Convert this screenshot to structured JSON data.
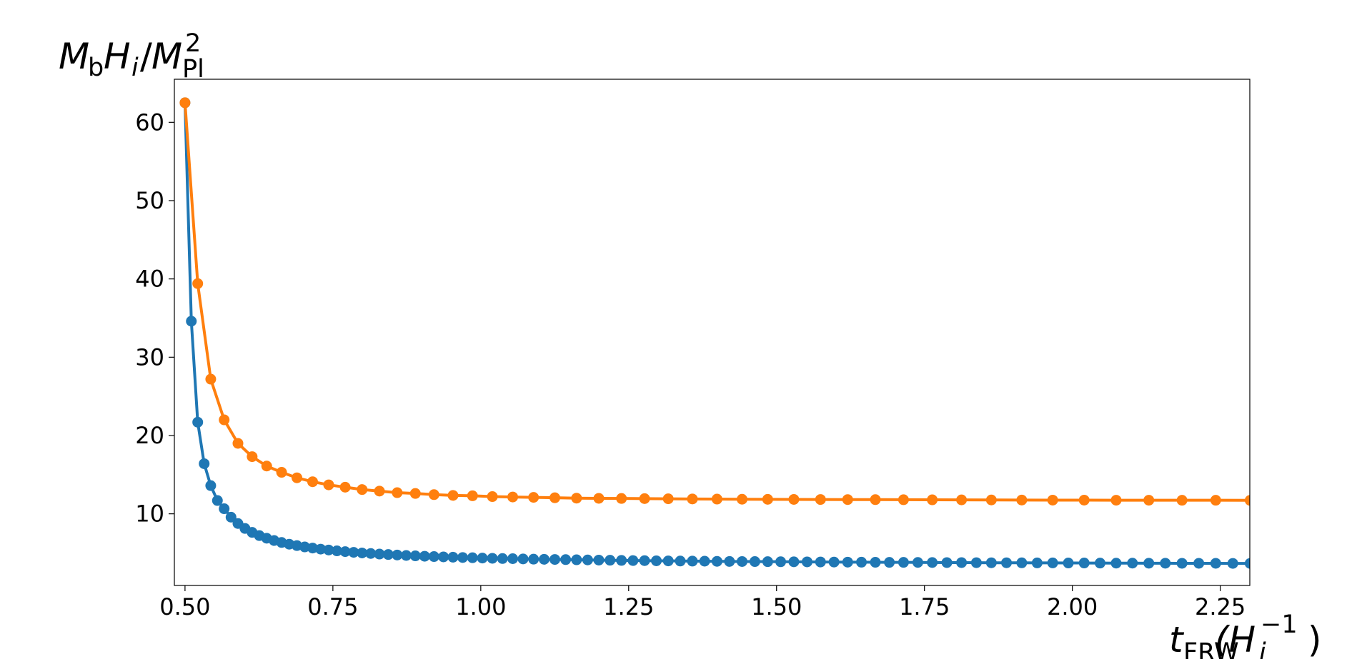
{
  "chart_data": {
    "type": "line",
    "ylabel": [
      "M",
      "b",
      "H",
      "i",
      "/",
      "M",
      "Pl",
      "2"
    ],
    "xlabel": [
      "t",
      "FRW",
      "(H",
      "i",
      "−1",
      ")"
    ],
    "xlim": [
      0.482,
      2.3
    ],
    "ylim": [
      0.85,
      65.5
    ],
    "xticks": [
      {
        "value": 0.5,
        "label": "0.50"
      },
      {
        "value": 0.75,
        "label": "0.75"
      },
      {
        "value": 1,
        "label": "1.00"
      },
      {
        "value": 1.25,
        "label": "1.25"
      },
      {
        "value": 1.5,
        "label": "1.50"
      },
      {
        "value": 1.75,
        "label": "1.75"
      },
      {
        "value": 2,
        "label": "2.00"
      },
      {
        "value": 2.25,
        "label": "2.25"
      }
    ],
    "yticks": [
      10,
      20,
      30,
      40,
      50,
      60
    ],
    "grid": false,
    "series": [
      {
        "name": "blue",
        "color": "#1f77b4",
        "x": [
          0.5,
          0.5107,
          0.5215,
          0.5324,
          0.5435,
          0.5548,
          0.5662,
          0.5778,
          0.5895,
          0.6014,
          0.6135,
          0.6257,
          0.6381,
          0.6506,
          0.6633,
          0.6762,
          0.6892,
          0.7024,
          0.7157,
          0.7293,
          0.7429,
          0.7568,
          0.7708,
          0.7851,
          0.7994,
          0.814,
          0.8287,
          0.8436,
          0.8587,
          0.874,
          0.8894,
          0.9051,
          0.9209,
          0.9369,
          0.9531,
          0.9694,
          0.986,
          1.0027,
          1.0196,
          1.0367,
          1.054,
          1.0715,
          1.0892,
          1.1071,
          1.1252,
          1.1435,
          1.1619,
          1.1806,
          1.1995,
          1.2185,
          1.2378,
          1.2573,
          1.2769,
          1.2968,
          1.3169,
          1.3372,
          1.3577,
          1.3784,
          1.3993,
          1.4204,
          1.4417,
          1.4633,
          1.485,
          1.507,
          1.5292,
          1.5516,
          1.5743,
          1.5971,
          1.6202,
          1.6435,
          1.667,
          1.6907,
          1.7146,
          1.7388,
          1.7632,
          1.7879,
          1.8127,
          1.8378,
          1.8631,
          1.8887,
          1.9145,
          1.9405,
          1.9668,
          1.9932,
          2.02,
          2.0469,
          2.0741,
          2.1016,
          2.1293,
          2.1572,
          2.1854,
          2.2138,
          2.2424,
          2.2713,
          2.3005
        ],
        "values": [
          62.5,
          34.6,
          21.7,
          16.4,
          13.6,
          11.7,
          10.65,
          9.57,
          8.76,
          8.13,
          7.63,
          7.22,
          6.88,
          6.59,
          6.34,
          6.12,
          5.94,
          5.77,
          5.63,
          5.49,
          5.38,
          5.27,
          5.17,
          5.08,
          5.0,
          4.93,
          4.86,
          4.8,
          4.74,
          4.68,
          4.63,
          4.58,
          4.54,
          4.5,
          4.46,
          4.42,
          4.39,
          4.35,
          4.32,
          4.29,
          4.27,
          4.24,
          4.21,
          4.19,
          4.17,
          4.15,
          4.13,
          4.11,
          4.09,
          4.07,
          4.05,
          4.03,
          4.02,
          4.0,
          3.99,
          3.97,
          3.96,
          3.95,
          3.93,
          3.92,
          3.91,
          3.9,
          3.89,
          3.88,
          3.87,
          3.86,
          3.85,
          3.84,
          3.83,
          3.82,
          3.81,
          3.8,
          3.8,
          3.79,
          3.78,
          3.77,
          3.77,
          3.76,
          3.75,
          3.75,
          3.74,
          3.73,
          3.73,
          3.72,
          3.72,
          3.71,
          3.7,
          3.7,
          3.69,
          3.69,
          3.68,
          3.68,
          3.68,
          3.67,
          3.67
        ]
      },
      {
        "name": "orange",
        "color": "#ff7f0e",
        "x": [
          0.5,
          0.5215,
          0.5435,
          0.5662,
          0.5895,
          0.6135,
          0.6381,
          0.6633,
          0.6892,
          0.7157,
          0.7429,
          0.7708,
          0.7994,
          0.8287,
          0.8587,
          0.8894,
          0.9209,
          0.9531,
          0.986,
          1.0196,
          1.054,
          1.0892,
          1.1252,
          1.1619,
          1.1995,
          1.2378,
          1.2769,
          1.3169,
          1.3577,
          1.3993,
          1.4417,
          1.485,
          1.5292,
          1.5743,
          1.6202,
          1.667,
          1.7146,
          1.7632,
          1.8127,
          1.8631,
          1.9145,
          1.9668,
          2.02,
          2.0741,
          2.1293,
          2.1854,
          2.2424,
          2.3005
        ],
        "values": [
          62.5,
          39.4,
          27.2,
          22.0,
          19.0,
          17.3,
          16.1,
          15.3,
          14.6,
          14.1,
          13.7,
          13.4,
          13.1,
          12.9,
          12.7,
          12.6,
          12.45,
          12.35,
          12.3,
          12.2,
          12.15,
          12.1,
          12.05,
          12.0,
          11.98,
          11.96,
          11.94,
          11.92,
          11.9,
          11.88,
          11.86,
          11.85,
          11.84,
          11.83,
          11.82,
          11.81,
          11.8,
          11.79,
          11.78,
          11.77,
          11.76,
          11.75,
          11.75,
          11.74,
          11.74,
          11.73,
          11.73,
          11.72
        ]
      }
    ]
  }
}
